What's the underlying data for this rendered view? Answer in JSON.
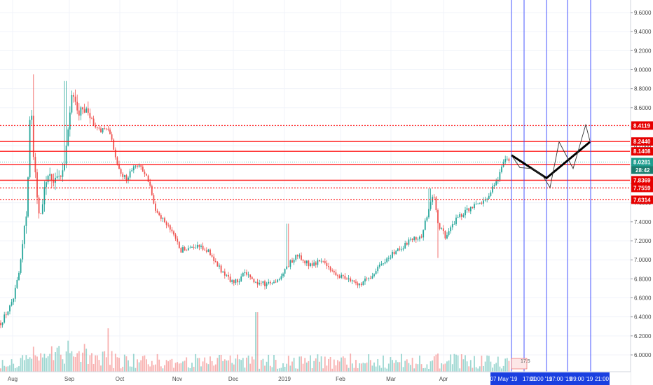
{
  "chart_data": {
    "type": "candlestick",
    "y_axis": {
      "ylim": [
        5.93,
        9.72
      ],
      "ticks": [
        "9.6000",
        "9.4000",
        "9.2000",
        "9.0000",
        "8.8000",
        "8.6000",
        "8.4000",
        "8.2000",
        "8.0000",
        "7.8000",
        "7.6000",
        "7.4000",
        "7.2000",
        "7.0000",
        "6.8000",
        "6.6000",
        "6.4000",
        "6.2000",
        "6.0000"
      ],
      "tick_values": [
        9.6,
        9.4,
        9.2,
        9.0,
        8.8,
        8.6,
        8.4,
        8.2,
        8.0,
        7.8,
        7.6,
        7.4,
        7.2,
        7.0,
        6.8,
        6.6,
        6.4,
        6.2,
        6.0
      ],
      "position": "right"
    },
    "x_axis": {
      "labels": [
        "Aug",
        "Sep",
        "Oct",
        "Nov",
        "Dec",
        "2019",
        "Feb",
        "Mar",
        "Apr"
      ]
    },
    "grid": true,
    "price_series": {
      "approx_points": [
        [
          "Jul 25",
          6.32
        ],
        [
          "Aug 1",
          6.55
        ],
        [
          "Aug 5",
          6.9
        ],
        [
          "Aug 9",
          7.6
        ],
        [
          "Aug 11",
          8.9
        ],
        [
          "Aug 12",
          8.1
        ],
        [
          "Aug 16",
          7.4
        ],
        [
          "Aug 20",
          7.95
        ],
        [
          "Aug 25",
          7.8
        ],
        [
          "Aug 30",
          8.1
        ],
        [
          "Sep 2",
          8.75
        ],
        [
          "Sep 6",
          8.55
        ],
        [
          "Sep 12",
          8.55
        ],
        [
          "Sep 18",
          8.35
        ],
        [
          "Sep 24",
          8.4
        ],
        [
          "Sep 27",
          8.2
        ],
        [
          "Oct 1",
          7.9
        ],
        [
          "Oct 5",
          7.85
        ],
        [
          "Oct 9",
          8.0
        ],
        [
          "Oct 12",
          8.0
        ],
        [
          "Oct 16",
          7.85
        ],
        [
          "Oct 20",
          7.55
        ],
        [
          "Oct 27",
          7.35
        ],
        [
          "Nov 3",
          7.1
        ],
        [
          "Nov 10",
          7.15
        ],
        [
          "Nov 17",
          7.1
        ],
        [
          "Nov 24",
          6.9
        ],
        [
          "Dec 1",
          6.75
        ],
        [
          "Dec 8",
          6.85
        ],
        [
          "Dec 15",
          6.75
        ],
        [
          "Dec 22",
          6.75
        ],
        [
          "Dec 29",
          6.8
        ],
        [
          "Jan 1",
          6.9
        ],
        [
          "Jan 8",
          7.05
        ],
        [
          "Jan 15",
          6.95
        ],
        [
          "Jan 22",
          7.0
        ],
        [
          "Jan 29",
          6.85
        ],
        [
          "Feb 5",
          6.8
        ],
        [
          "Feb 12",
          6.75
        ],
        [
          "Feb 19",
          6.85
        ],
        [
          "Feb 26",
          7.0
        ],
        [
          "Mar 5",
          7.1
        ],
        [
          "Mar 12",
          7.2
        ],
        [
          "Mar 19",
          7.25
        ],
        [
          "Mar 26",
          7.7
        ],
        [
          "Mar 29",
          7.35
        ],
        [
          "Apr 2",
          7.25
        ],
        [
          "Apr 9",
          7.45
        ],
        [
          "Apr 16",
          7.55
        ],
        [
          "Apr 23",
          7.6
        ],
        [
          "Apr 30",
          7.8
        ],
        [
          "May 5",
          8.05
        ]
      ]
    },
    "horizontal_levels": [
      {
        "label": "8.4119",
        "value": 8.4119,
        "style": "dotted"
      },
      {
        "label": "8.2440",
        "value": 8.244,
        "style": "solid"
      },
      {
        "label": "8.1408",
        "value": 8.1408,
        "style": "solid"
      },
      {
        "label": "7.9999",
        "value": 7.9999,
        "style": "solid"
      },
      {
        "label": "7.8369",
        "value": 7.8369,
        "style": "solid"
      },
      {
        "label": "7.7559",
        "value": 7.7559,
        "style": "dotted"
      },
      {
        "label": "7.6314",
        "value": 7.6314,
        "style": "dotted"
      }
    ],
    "current_price": {
      "label": "8.0281",
      "value": 8.0281,
      "countdown": "28:42"
    },
    "projection": {
      "thick_path": [
        8.1,
        7.86,
        8.24
      ],
      "thin_path": [
        8.1,
        7.97,
        7.96,
        7.88,
        7.76,
        8.24,
        7.96,
        8.42,
        8.25
      ]
    },
    "vertical_markers": 7,
    "time_labels": [
      "07 May '19",
      "17:00",
      "01:00 '19",
      "17:00 '19",
      "09:00 '19",
      "21:00"
    ],
    "volume_annotation": "17.5"
  },
  "colors": {
    "up": "#26a69a",
    "down": "#ef5350",
    "level": "#ff1a1a",
    "level_badge": "#e60000",
    "current_badge": "#1f9e8f",
    "countdown_badge": "#1c7c6e",
    "vertical": "#3344ff",
    "projection": "#000000",
    "time_bar": "#1a3fe0"
  }
}
